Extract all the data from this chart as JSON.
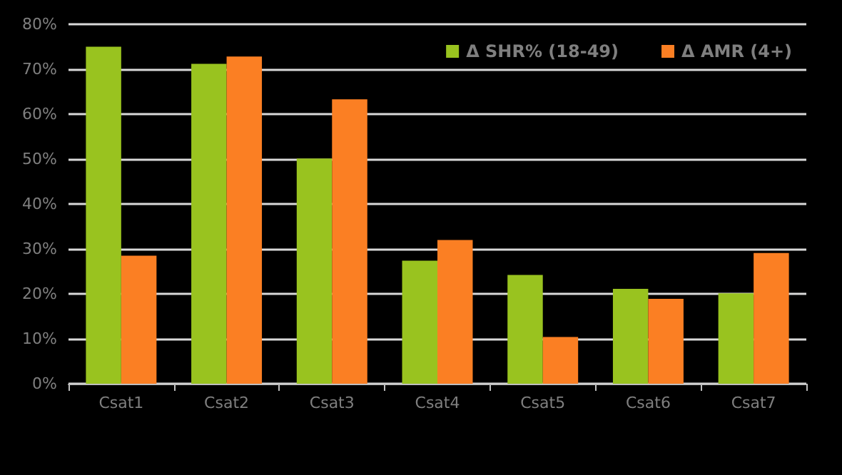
{
  "chart_data": {
    "type": "bar",
    "categories": [
      "Csat1",
      "Csat2",
      "Csat3",
      "Csat4",
      "Csat5",
      "Csat6",
      "Csat7"
    ],
    "series": [
      {
        "name": "Δ SHR% (18-49)",
        "color": "#99c31f",
        "values": [
          75,
          71.2,
          50.1,
          27.4,
          24.2,
          21.1,
          20.1
        ]
      },
      {
        "name": "Δ AMR (4+)",
        "color": "#fb7f23",
        "values": [
          28.5,
          72.8,
          63.3,
          32,
          10.4,
          18.9,
          29.1
        ]
      }
    ],
    "ylim": [
      0,
      80
    ],
    "yticks": [
      {
        "value": 0,
        "label": "0%"
      },
      {
        "value": 10,
        "label": "10%"
      },
      {
        "value": 20,
        "label": "20%"
      },
      {
        "value": 30,
        "label": "30%"
      },
      {
        "value": 40,
        "label": "40%"
      },
      {
        "value": 50,
        "label": "50%"
      },
      {
        "value": 60,
        "label": "60%"
      },
      {
        "value": 70,
        "label": "70%"
      },
      {
        "value": 80,
        "label": "80%"
      }
    ],
    "grid": "y",
    "legend": "top right"
  }
}
